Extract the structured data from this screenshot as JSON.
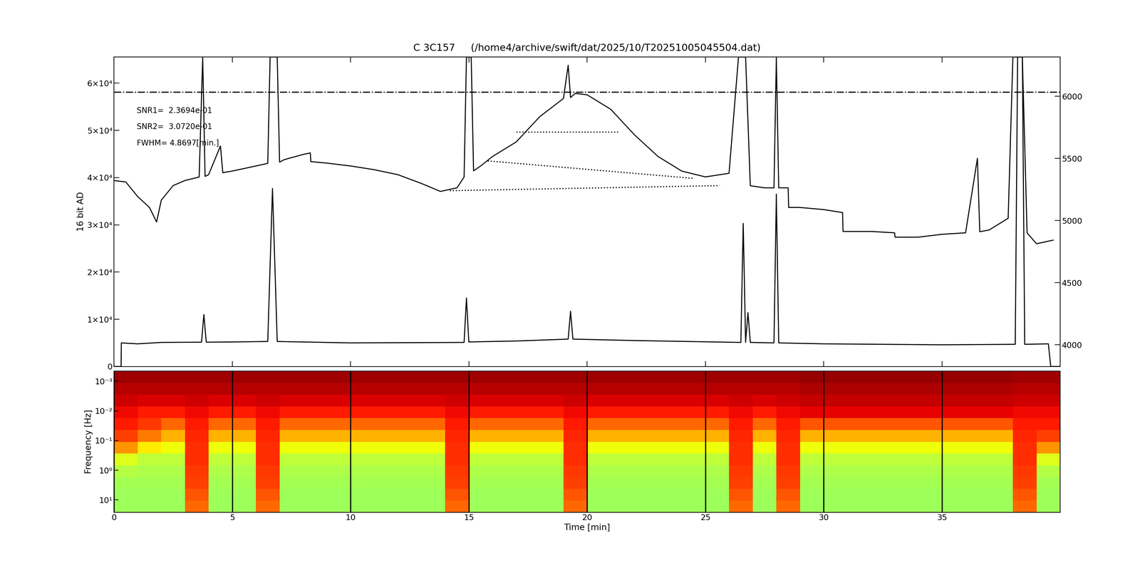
{
  "chart_data": [
    {
      "type": "line",
      "title": "C 3C157     (/home4/archive/swift/dat/2025/10/T20251005045504.dat)",
      "ylabel": "16 bit AD",
      "xlim": [
        0,
        40
      ],
      "xticks": [
        0,
        5,
        10,
        15,
        20,
        25,
        30,
        35
      ],
      "ylim": [
        0,
        65535
      ],
      "yticks": [
        0,
        {
          "value": 10000,
          "label": "1×10⁴"
        },
        {
          "value": 20000,
          "label": "2×10⁴"
        },
        {
          "value": 30000,
          "label": "3×10⁴"
        },
        {
          "value": 40000,
          "label": "4×10⁴"
        },
        {
          "value": 50000,
          "label": "5×10⁴"
        },
        {
          "value": 60000,
          "label": "6×10⁴"
        }
      ],
      "y2lim": [
        3825,
        6316
      ],
      "y2ticks": [
        4000,
        4500,
        5000,
        5500,
        6000
      ],
      "tick_labels": "y",
      "annotations": [
        "SNR1=  2.3694e-01",
        "SNR2=  3.0720e-01",
        "FWHM= 4.8697[min.]"
      ],
      "series": [
        {
          "color": "#000000",
          "axis": "y2",
          "line_style": "solid",
          "x": [
            0,
            0.5,
            1,
            1.5,
            1.8,
            2.0,
            2.5,
            3,
            3.6,
            3.75,
            3.85,
            4,
            4.5,
            4.6,
            5,
            6,
            6.5,
            6.6,
            6.9,
            7.0,
            7.2,
            8,
            8.3,
            8.32,
            9,
            10,
            11,
            12,
            13,
            13.8,
            14.5,
            14.8,
            14.9,
            15.1,
            15.2,
            15.5,
            16,
            17,
            18,
            19,
            19.2,
            19.3,
            19.5,
            20,
            21,
            22,
            23,
            24,
            25,
            26,
            26.4,
            26.7,
            26.9,
            27.5,
            27.9,
            28.0,
            28.1,
            28.5,
            28.52,
            29,
            30,
            30.8,
            30.82,
            32,
            33,
            33.02,
            34,
            35,
            36,
            36.5,
            36.6,
            37,
            37.8,
            38.0,
            38.4,
            38.6,
            39,
            39.7
          ],
          "values": [
            5322,
            5310,
            5193,
            5105,
            4988,
            5164,
            5281,
            5322,
            5350,
            6316,
            5355,
            5369,
            5600,
            5385,
            5398,
            5439,
            5460,
            6316,
            6316,
            5470,
            5490,
            5532,
            5544,
            5474,
            5462,
            5439,
            5409,
            5369,
            5298,
            5234,
            5263,
            5350,
            6316,
            6316,
            5400,
            5439,
            5515,
            5632,
            5836,
            5982,
            6250,
            5990,
            6023,
            6012,
            5895,
            5690,
            5515,
            5398,
            5351,
            5380,
            6316,
            6316,
            5280,
            5263,
            5263,
            6316,
            5263,
            5263,
            5105,
            5105,
            5088,
            5064,
            4912,
            4912,
            4901,
            4866,
            4866,
            4889,
            4901,
            5500,
            4910,
            4924,
            5018,
            6316,
            6316,
            4900,
            4813,
            4842
          ]
        },
        {
          "color": "#000000",
          "axis": "y",
          "line_style": "solid",
          "x": [
            0,
            0.3,
            0.31,
            1,
            2,
            3.7,
            3.8,
            3.9,
            5,
            6.5,
            6.7,
            6.9,
            10,
            14.8,
            14.9,
            15.0,
            17,
            19.2,
            19.3,
            19.4,
            22,
            26.5,
            26.6,
            26.7,
            26.8,
            26.9,
            27.9,
            28.0,
            28.1,
            30,
            35,
            38.1,
            38.2,
            38.4,
            38.5,
            39.5,
            39.6,
            40
          ],
          "values": [
            0,
            0,
            5000,
            4800,
            5100,
            5150,
            11000,
            5150,
            5200,
            5300,
            37700,
            5300,
            5000,
            5100,
            14500,
            5200,
            5400,
            5800,
            11700,
            5800,
            5500,
            5100,
            30300,
            5100,
            11400,
            5100,
            5000,
            36500,
            5000,
            4800,
            4600,
            4700,
            65535,
            65535,
            4700,
            4800,
            0,
            0
          ]
        },
        {
          "color": "#000000",
          "axis": "y2",
          "line_style": "dotted",
          "x": [
            14.2,
            25.6
          ],
          "values": [
            5240,
            5281
          ]
        },
        {
          "color": "#000000",
          "axis": "y2",
          "line_style": "dotted",
          "x": [
            15.8,
            24.5
          ],
          "values": [
            5480,
            5339
          ]
        },
        {
          "color": "#000000",
          "axis": "y2",
          "line_style": "dotted",
          "x": [
            17,
            21.3
          ],
          "values": [
            5713,
            5713
          ]
        },
        {
          "color": "#000000",
          "axis": "y",
          "line_style": "dashdot",
          "x": [
            0,
            40
          ],
          "values": [
            58100,
            58100
          ]
        }
      ]
    },
    {
      "type": "heatmap",
      "xlabel": "Time [min]",
      "ylabel": "Frequency [Hz]",
      "log": "y",
      "grid": true,
      "xlim": [
        0,
        40
      ],
      "xticks": [
        0,
        5,
        10,
        15,
        20,
        25,
        30,
        35
      ],
      "ylim": [
        26.3,
        0.000457
      ],
      "yticks": [
        {
          "value": 0.001,
          "label": "10⁻³"
        },
        {
          "value": 0.01,
          "label": "10⁻²"
        },
        {
          "value": 0.1,
          "label": "10⁻¹"
        },
        {
          "value": 1,
          "label": "10⁰"
        },
        {
          "value": 10,
          "label": "10¹"
        }
      ],
      "clim": [
        0,
        1
      ],
      "time_edges": [
        0,
        1,
        2,
        3,
        4,
        5,
        6,
        7,
        8,
        9,
        10,
        11,
        12,
        13,
        14,
        15,
        16,
        17,
        18,
        19,
        20,
        21,
        22,
        23,
        24,
        25,
        26,
        27,
        28,
        29,
        30,
        31,
        32,
        33,
        34,
        35,
        36,
        37,
        38,
        39,
        40
      ],
      "freq_edges": [
        0.000457,
        0.00114,
        0.00284,
        0.00708,
        0.0177,
        0.044,
        0.11,
        0.274,
        0.681,
        1.7,
        4.24,
        10.5,
        26.3
      ],
      "cells": [
        [
          0.97,
          0.97,
          0.97,
          0.97,
          0.97,
          0.97,
          0.97,
          0.97,
          0.97,
          0.97,
          0.97,
          0.97,
          0.97,
          0.97,
          0.97,
          0.97,
          0.97,
          0.97,
          0.97,
          0.97,
          0.97,
          0.97,
          0.97,
          0.97,
          0.97,
          0.97,
          0.97,
          0.97,
          0.97,
          0.98,
          0.98,
          0.98,
          0.98,
          0.98,
          0.98,
          0.98,
          0.98,
          0.98,
          0.97,
          0.97
        ],
        [
          0.95,
          0.95,
          0.95,
          0.95,
          0.95,
          0.95,
          0.95,
          0.95,
          0.95,
          0.95,
          0.95,
          0.95,
          0.95,
          0.95,
          0.95,
          0.95,
          0.95,
          0.95,
          0.95,
          0.95,
          0.95,
          0.95,
          0.95,
          0.95,
          0.95,
          0.95,
          0.95,
          0.95,
          0.95,
          0.96,
          0.96,
          0.96,
          0.96,
          0.96,
          0.96,
          0.96,
          0.96,
          0.96,
          0.95,
          0.95
        ],
        [
          0.93,
          0.92,
          0.92,
          0.93,
          0.92,
          0.92,
          0.93,
          0.92,
          0.92,
          0.92,
          0.92,
          0.92,
          0.92,
          0.92,
          0.93,
          0.92,
          0.92,
          0.92,
          0.92,
          0.93,
          0.92,
          0.92,
          0.92,
          0.92,
          0.92,
          0.92,
          0.93,
          0.92,
          0.93,
          0.94,
          0.94,
          0.94,
          0.94,
          0.94,
          0.94,
          0.94,
          0.94,
          0.94,
          0.93,
          0.93
        ],
        [
          0.9,
          0.88,
          0.88,
          0.9,
          0.88,
          0.88,
          0.9,
          0.88,
          0.88,
          0.88,
          0.88,
          0.88,
          0.88,
          0.88,
          0.9,
          0.88,
          0.88,
          0.88,
          0.88,
          0.9,
          0.88,
          0.88,
          0.88,
          0.88,
          0.88,
          0.88,
          0.9,
          0.88,
          0.9,
          0.91,
          0.91,
          0.91,
          0.91,
          0.91,
          0.91,
          0.91,
          0.91,
          0.91,
          0.9,
          0.9
        ],
        [
          0.88,
          0.85,
          0.8,
          0.88,
          0.8,
          0.8,
          0.88,
          0.8,
          0.8,
          0.8,
          0.8,
          0.8,
          0.8,
          0.8,
          0.88,
          0.8,
          0.8,
          0.8,
          0.8,
          0.88,
          0.8,
          0.8,
          0.8,
          0.8,
          0.8,
          0.8,
          0.88,
          0.8,
          0.88,
          0.82,
          0.82,
          0.82,
          0.82,
          0.82,
          0.82,
          0.82,
          0.82,
          0.82,
          0.88,
          0.88
        ],
        [
          0.84,
          0.78,
          0.72,
          0.87,
          0.72,
          0.72,
          0.87,
          0.72,
          0.72,
          0.72,
          0.72,
          0.72,
          0.72,
          0.72,
          0.87,
          0.72,
          0.72,
          0.72,
          0.72,
          0.87,
          0.72,
          0.72,
          0.72,
          0.72,
          0.72,
          0.72,
          0.87,
          0.72,
          0.87,
          0.72,
          0.72,
          0.72,
          0.72,
          0.72,
          0.72,
          0.72,
          0.72,
          0.72,
          0.87,
          0.84
        ],
        [
          0.75,
          0.66,
          0.64,
          0.86,
          0.64,
          0.64,
          0.86,
          0.64,
          0.64,
          0.64,
          0.64,
          0.64,
          0.64,
          0.64,
          0.86,
          0.64,
          0.64,
          0.64,
          0.64,
          0.86,
          0.64,
          0.64,
          0.64,
          0.64,
          0.64,
          0.64,
          0.86,
          0.64,
          0.86,
          0.64,
          0.64,
          0.64,
          0.64,
          0.64,
          0.64,
          0.64,
          0.64,
          0.64,
          0.86,
          0.75
        ],
        [
          0.62,
          0.58,
          0.58,
          0.86,
          0.58,
          0.58,
          0.86,
          0.58,
          0.58,
          0.58,
          0.58,
          0.58,
          0.58,
          0.58,
          0.86,
          0.58,
          0.58,
          0.58,
          0.58,
          0.86,
          0.58,
          0.58,
          0.58,
          0.58,
          0.58,
          0.58,
          0.86,
          0.58,
          0.86,
          0.58,
          0.58,
          0.58,
          0.58,
          0.58,
          0.58,
          0.58,
          0.58,
          0.58,
          0.86,
          0.62
        ],
        [
          0.57,
          0.56,
          0.56,
          0.85,
          0.56,
          0.56,
          0.85,
          0.56,
          0.56,
          0.56,
          0.56,
          0.56,
          0.56,
          0.56,
          0.85,
          0.56,
          0.56,
          0.56,
          0.56,
          0.85,
          0.56,
          0.56,
          0.56,
          0.56,
          0.56,
          0.56,
          0.85,
          0.56,
          0.85,
          0.56,
          0.56,
          0.56,
          0.56,
          0.56,
          0.56,
          0.56,
          0.56,
          0.56,
          0.85,
          0.57
        ],
        [
          0.55,
          0.55,
          0.55,
          0.84,
          0.55,
          0.55,
          0.84,
          0.55,
          0.55,
          0.55,
          0.55,
          0.55,
          0.55,
          0.55,
          0.84,
          0.55,
          0.55,
          0.55,
          0.55,
          0.84,
          0.55,
          0.55,
          0.55,
          0.55,
          0.55,
          0.55,
          0.84,
          0.55,
          0.84,
          0.55,
          0.55,
          0.55,
          0.55,
          0.55,
          0.55,
          0.55,
          0.55,
          0.55,
          0.84,
          0.55
        ],
        [
          0.54,
          0.54,
          0.54,
          0.82,
          0.54,
          0.54,
          0.82,
          0.54,
          0.54,
          0.54,
          0.54,
          0.54,
          0.54,
          0.54,
          0.82,
          0.54,
          0.54,
          0.54,
          0.54,
          0.82,
          0.54,
          0.54,
          0.54,
          0.54,
          0.54,
          0.54,
          0.82,
          0.54,
          0.82,
          0.54,
          0.54,
          0.54,
          0.54,
          0.54,
          0.54,
          0.54,
          0.54,
          0.54,
          0.82,
          0.54
        ],
        [
          0.54,
          0.54,
          0.54,
          0.8,
          0.54,
          0.54,
          0.8,
          0.54,
          0.54,
          0.54,
          0.54,
          0.54,
          0.54,
          0.54,
          0.8,
          0.54,
          0.54,
          0.54,
          0.54,
          0.8,
          0.54,
          0.54,
          0.54,
          0.54,
          0.54,
          0.54,
          0.8,
          0.54,
          0.8,
          0.54,
          0.54,
          0.54,
          0.54,
          0.54,
          0.54,
          0.54,
          0.54,
          0.54,
          0.8,
          0.54
        ]
      ]
    }
  ]
}
